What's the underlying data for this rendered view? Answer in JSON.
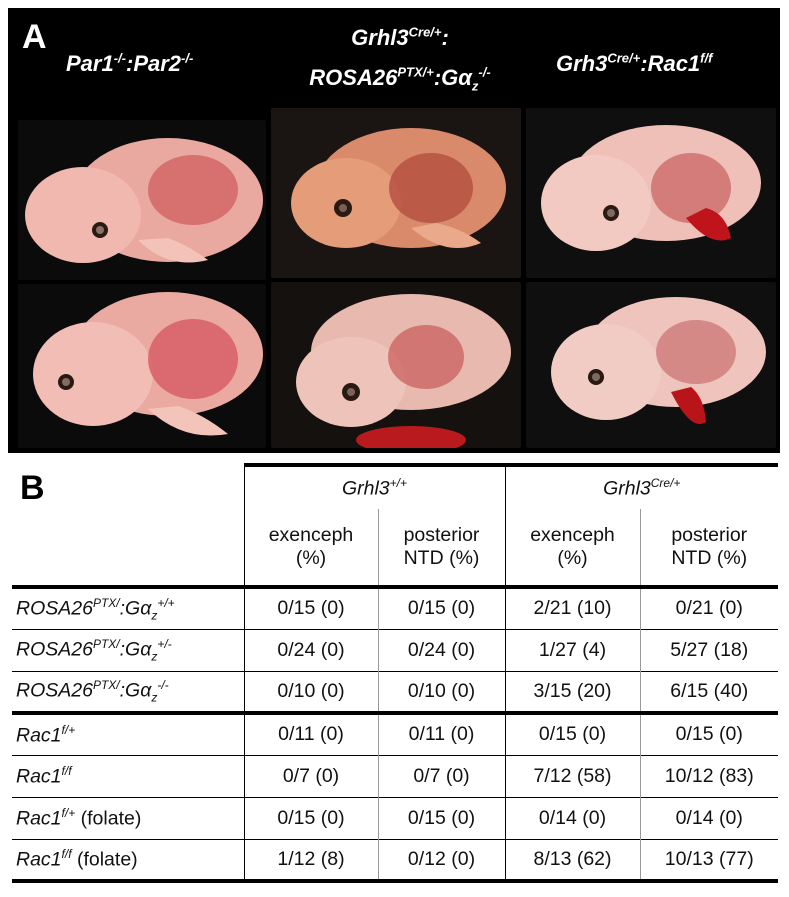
{
  "panel_a": {
    "label": "A",
    "columns": [
      {
        "title_parts": [
          "Par1",
          "-/-",
          ":Par2",
          "-/-"
        ]
      },
      {
        "title_line1_parts": [
          "Grhl3",
          "Cre/+",
          ":"
        ],
        "title_line2_parts": [
          "ROSA26",
          "PTX/+",
          ":Gα",
          "z",
          "-/-"
        ]
      },
      {
        "title_parts": [
          "Grh3",
          "Cre/+",
          ":Rac1",
          "f/f"
        ]
      }
    ]
  },
  "panel_b": {
    "label": "B",
    "group_headers": [
      {
        "name": "Grhl3",
        "sup": "+/+"
      },
      {
        "name": "Grhl3",
        "sup": "Cre/+"
      }
    ],
    "column_headers": [
      {
        "line1": "exenceph",
        "line2": "(%)"
      },
      {
        "line1": "posterior",
        "line2": "NTD (%)"
      },
      {
        "line1": "exenceph",
        "line2": "(%)"
      },
      {
        "line1": "posterior",
        "line2": "NTD (%)"
      }
    ],
    "rows": [
      {
        "gene": "ROSA26",
        "sup1": "PTX/",
        "mid": ":Gα",
        "sub": "z",
        "sup2": "+/+",
        "suffix": "",
        "values": [
          "0/15 (0)",
          "0/15 (0)",
          "2/21 (10)",
          "0/21 (0)"
        ]
      },
      {
        "gene": "ROSA26",
        "sup1": "PTX/",
        "mid": ":Gα",
        "sub": "z",
        "sup2": "+/-",
        "suffix": "",
        "values": [
          "0/24 (0)",
          "0/24 (0)",
          "1/27 (4)",
          "5/27 (18)"
        ]
      },
      {
        "gene": "ROSA26",
        "sup1": "PTX/",
        "mid": ":Gα",
        "sub": "z",
        "sup2": "-/-",
        "suffix": "",
        "values": [
          "0/10 (0)",
          "0/10 (0)",
          "3/15 (20)",
          "6/15 (40)"
        ]
      },
      {
        "gene": "Rac1",
        "sup1": "f/+",
        "mid": "",
        "sub": "",
        "sup2": "",
        "suffix": "",
        "values": [
          "0/11 (0)",
          "0/11 (0)",
          "0/15 (0)",
          "0/15 (0)"
        ]
      },
      {
        "gene": "Rac1",
        "sup1": "f/f",
        "mid": "",
        "sub": "",
        "sup2": "",
        "suffix": "",
        "values": [
          "0/7 (0)",
          "0/7 (0)",
          "7/12 (58)",
          "10/12 (83)"
        ]
      },
      {
        "gene": "Rac1",
        "sup1": "f/+",
        "mid": "",
        "sub": "",
        "sup2": "",
        "suffix": " (folate)",
        "values": [
          "0/15 (0)",
          "0/15 (0)",
          "0/14 (0)",
          "0/14 (0)"
        ]
      },
      {
        "gene": "Rac1",
        "sup1": "f/f",
        "mid": "",
        "sub": "",
        "sup2": "",
        "suffix": " (folate)",
        "values": [
          "1/12 (8)",
          "0/12 (0)",
          "8/13 (62)",
          "10/13 (77)"
        ]
      }
    ]
  }
}
